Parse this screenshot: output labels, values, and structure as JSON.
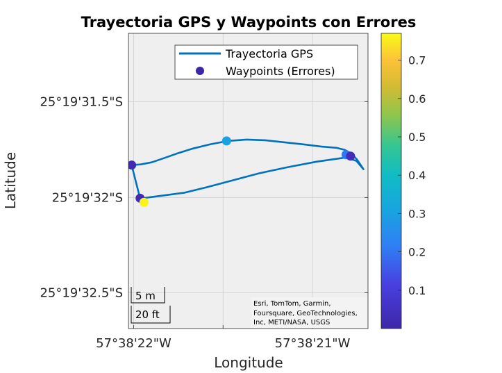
{
  "chart_data": {
    "type": "scatter",
    "title": "Trayectoria GPS y Waypoints con Errores",
    "xlabel": "Longitude",
    "ylabel": "Latitude",
    "x_ticks": [
      {
        "value": -57.639444,
        "label": "57°38'22\"W"
      },
      {
        "value": -57.639167,
        "label": "57°38'21\"W"
      }
    ],
    "y_ticks": [
      {
        "value": -25.325417,
        "label": "25°19'31.5\"S"
      },
      {
        "value": -25.325556,
        "label": "25°19'32\"S"
      },
      {
        "value": -25.325694,
        "label": "25°19'32.5\"S"
      }
    ],
    "xlim": [
      -57.639452,
      -57.639081
    ],
    "ylim": [
      -25.325746,
      -25.325318
    ],
    "grid": true,
    "legend_position": "top-right",
    "series": [
      {
        "name": "Trayectoria GPS",
        "kind": "line",
        "color": "#0072BD",
        "points": [
          [
            -57.639447,
            -25.325509
          ],
          [
            -57.639433,
            -25.325508
          ],
          [
            -57.639416,
            -25.325505
          ],
          [
            -57.639397,
            -25.325499
          ],
          [
            -57.639376,
            -25.325492
          ],
          [
            -57.639352,
            -25.325485
          ],
          [
            -57.639326,
            -25.325479
          ],
          [
            -57.639298,
            -25.325474
          ],
          [
            -57.639269,
            -25.325472
          ],
          [
            -57.63924,
            -25.325473
          ],
          [
            -57.63921,
            -25.325476
          ],
          [
            -57.63918,
            -25.325479
          ],
          [
            -57.639154,
            -25.325482
          ],
          [
            -57.63913,
            -25.325484
          ],
          [
            -57.639117,
            -25.325487
          ],
          [
            -57.639107,
            -25.325492
          ],
          [
            -57.639098,
            -25.325501
          ],
          [
            -57.639088,
            -25.325515
          ],
          [
            -57.639099,
            -25.325503
          ],
          [
            -57.639115,
            -25.325498
          ],
          [
            -57.63916,
            -25.325504
          ],
          [
            -57.639205,
            -25.325512
          ],
          [
            -57.63925,
            -25.325521
          ],
          [
            -57.63929,
            -25.325531
          ],
          [
            -57.63933,
            -25.325541
          ],
          [
            -57.639365,
            -25.325549
          ],
          [
            -57.639398,
            -25.325553
          ],
          [
            -57.63943,
            -25.325557
          ],
          [
            -57.639434,
            -25.325557
          ],
          [
            -57.639447,
            -25.325509
          ]
        ]
      },
      {
        "name": "Waypoints (Errores)",
        "kind": "scatter",
        "colormap": "parula",
        "points": [
          {
            "x": -57.639447,
            "y": -25.325509,
            "error": 0.02
          },
          {
            "x": -57.6393,
            "y": -25.325474,
            "error": 0.3
          },
          {
            "x": -57.639115,
            "y": -25.325494,
            "error": 0.2
          },
          {
            "x": -57.639108,
            "y": -25.325496,
            "error": 0.03
          },
          {
            "x": -57.639434,
            "y": -25.325557,
            "error": 0.02
          },
          {
            "x": -57.639428,
            "y": -25.325563,
            "error": 0.76
          }
        ]
      }
    ],
    "colorbar": {
      "range": [
        0,
        0.77
      ],
      "ticks": [
        0.1,
        0.2,
        0.3,
        0.4,
        0.5,
        0.6,
        0.7
      ],
      "tick_labels": [
        "0.1",
        "0.2",
        "0.3",
        "0.4",
        "0.5",
        "0.6",
        "0.7"
      ]
    },
    "scalebar": {
      "metric": "5 m",
      "imperial": "20 ft"
    },
    "attribution": [
      "Esri, TomTom, Garmin,",
      "Foursquare, GeoTechnologies,",
      "Inc, METI/NASA, USGS"
    ]
  }
}
